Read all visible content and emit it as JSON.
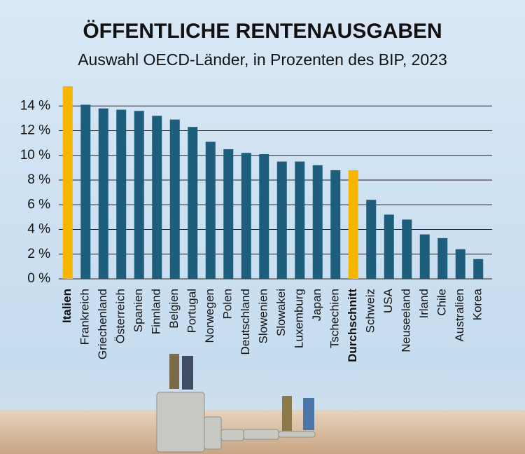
{
  "chart_data": {
    "type": "bar",
    "title": "ÖFFENTLICHE RENTENAUSGABEN",
    "subtitle": "Auswahl OECD-Länder, in Prozenten des BIP, 2023",
    "categories": [
      "Italien",
      "Frankreich",
      "Griechenland",
      "Österreich",
      "Spanien",
      "Finnland",
      "Belgien",
      "Portugal",
      "Norwegen",
      "Polen",
      "Deutschland",
      "Slowenien",
      "Slowakei",
      "Luxemburg",
      "Japan",
      "Tschechien",
      "Durchschnitt",
      "Schweiz",
      "USA",
      "Neuseeland",
      "Irland",
      "Chile",
      "Australien",
      "Korea"
    ],
    "values": [
      15.6,
      14.1,
      13.8,
      13.7,
      13.6,
      13.2,
      12.9,
      12.3,
      11.1,
      10.5,
      10.2,
      10.1,
      9.5,
      9.5,
      9.2,
      8.8,
      8.8,
      6.4,
      5.2,
      4.8,
      3.6,
      3.3,
      2.4,
      1.6
    ],
    "color": "#1d5e7c",
    "colors": [
      "#f7b500",
      "#1d5e7c",
      "#1d5e7c",
      "#1d5e7c",
      "#1d5e7c",
      "#1d5e7c",
      "#1d5e7c",
      "#1d5e7c",
      "#1d5e7c",
      "#1d5e7c",
      "#1d5e7c",
      "#1d5e7c",
      "#1d5e7c",
      "#1d5e7c",
      "#1d5e7c",
      "#1d5e7c",
      "#f7b500",
      "#1d5e7c",
      "#1d5e7c",
      "#1d5e7c",
      "#1d5e7c",
      "#1d5e7c",
      "#1d5e7c",
      "#1d5e7c"
    ],
    "ylim": [
      0,
      16
    ],
    "yticks": [
      {
        "value": 0,
        "label": "0 %"
      },
      {
        "value": 2,
        "label": "2 %"
      },
      {
        "value": 4,
        "label": "4 %"
      },
      {
        "value": 6,
        "label": "6 %"
      },
      {
        "value": 8,
        "label": "8 %"
      },
      {
        "value": 10,
        "label": "10 %"
      },
      {
        "value": 12,
        "label": "12 %"
      },
      {
        "value": 14,
        "label": "14 %"
      }
    ],
    "grid": true
  }
}
